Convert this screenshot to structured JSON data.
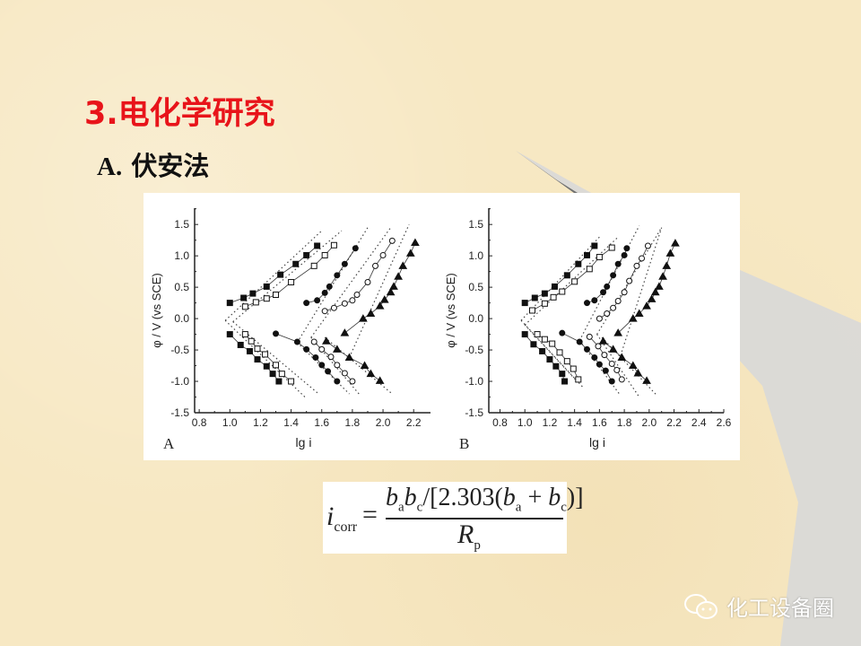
{
  "slide": {
    "title": "3.电化学研究",
    "subtitle_letter": "A.",
    "subtitle_text": "伏安法"
  },
  "formula": {
    "lhs": "i",
    "lhs_sub": "corr",
    "equals": "=",
    "numerator": [
      "b",
      "a",
      "b",
      "c",
      "/[2.303(",
      "b",
      "a",
      " + ",
      "b",
      "c",
      ")]"
    ],
    "denominator": "R",
    "denominator_sub": "p"
  },
  "watermark": {
    "icon": "wechat-icon",
    "text": "化工设备圈"
  },
  "colors": {
    "title": "#e8141a",
    "background": "#f7e8c3",
    "swoosh": "#d6d6d6"
  },
  "chart_data": [
    {
      "type": "scatter",
      "panel_label": "A",
      "xlabel": "lg i",
      "ylabel": "φ / V (vs SCE)",
      "xlim": [
        0.77,
        2.31
      ],
      "ylim": [
        -1.5,
        1.76
      ],
      "xticks": [
        "0.8",
        "1.0",
        "1.2",
        "1.4",
        "1.6",
        "1.8",
        "2.0",
        "2.2"
      ],
      "yticks": [
        "-1.5",
        "-1.0",
        "-0.5",
        "0.0",
        "0.5",
        "1.0",
        "1.5"
      ],
      "grid": false,
      "series": [
        {
          "marker": "filled-square",
          "branch": "anodic",
          "points": [
            [
              1.0,
              0.25
            ],
            [
              1.09,
              0.33
            ],
            [
              1.15,
              0.4
            ],
            [
              1.24,
              0.51
            ],
            [
              1.33,
              0.7
            ],
            [
              1.43,
              0.87
            ],
            [
              1.5,
              1.01
            ],
            [
              1.57,
              1.16
            ]
          ]
        },
        {
          "marker": "open-square",
          "branch": "anodic",
          "points": [
            [
              1.1,
              0.19
            ],
            [
              1.17,
              0.26
            ],
            [
              1.24,
              0.32
            ],
            [
              1.3,
              0.38
            ],
            [
              1.4,
              0.58
            ],
            [
              1.55,
              0.84
            ],
            [
              1.62,
              1.01
            ],
            [
              1.68,
              1.17
            ]
          ]
        },
        {
          "marker": "filled-circle",
          "branch": "anodic",
          "points": [
            [
              1.5,
              0.25
            ],
            [
              1.57,
              0.29
            ],
            [
              1.62,
              0.41
            ],
            [
              1.65,
              0.51
            ],
            [
              1.7,
              0.69
            ],
            [
              1.75,
              0.87
            ],
            [
              1.82,
              1.12
            ]
          ]
        },
        {
          "marker": "open-circle",
          "branch": "anodic",
          "points": [
            [
              1.62,
              0.12
            ],
            [
              1.68,
              0.17
            ],
            [
              1.75,
              0.24
            ],
            [
              1.8,
              0.29
            ],
            [
              1.83,
              0.38
            ],
            [
              1.9,
              0.58
            ],
            [
              1.95,
              0.84
            ],
            [
              2.0,
              1.01
            ],
            [
              2.06,
              1.24
            ]
          ]
        },
        {
          "marker": "filled-triangle",
          "branch": "anodic",
          "points": [
            [
              1.75,
              -0.23
            ],
            [
              1.87,
              0.0
            ],
            [
              1.92,
              0.08
            ],
            [
              1.98,
              0.2
            ],
            [
              2.01,
              0.3
            ],
            [
              2.05,
              0.42
            ],
            [
              2.07,
              0.51
            ],
            [
              2.1,
              0.67
            ],
            [
              2.13,
              0.84
            ],
            [
              2.18,
              1.04
            ],
            [
              2.21,
              1.21
            ]
          ]
        },
        {
          "marker": "filled-square",
          "branch": "cathodic",
          "points": [
            [
              1.0,
              -0.25
            ],
            [
              1.07,
              -0.42
            ],
            [
              1.13,
              -0.52
            ],
            [
              1.18,
              -0.65
            ],
            [
              1.24,
              -0.76
            ],
            [
              1.28,
              -0.88
            ],
            [
              1.32,
              -1.0
            ]
          ]
        },
        {
          "marker": "open-square",
          "branch": "cathodic",
          "points": [
            [
              1.1,
              -0.25
            ],
            [
              1.14,
              -0.36
            ],
            [
              1.18,
              -0.48
            ],
            [
              1.23,
              -0.57
            ],
            [
              1.3,
              -0.74
            ],
            [
              1.34,
              -0.88
            ],
            [
              1.4,
              -1.0
            ]
          ]
        },
        {
          "marker": "filled-circle",
          "branch": "cathodic",
          "points": [
            [
              1.3,
              -0.24
            ],
            [
              1.44,
              -0.37
            ],
            [
              1.5,
              -0.49
            ],
            [
              1.56,
              -0.62
            ],
            [
              1.6,
              -0.74
            ],
            [
              1.64,
              -0.84
            ],
            [
              1.7,
              -1.0
            ]
          ]
        },
        {
          "marker": "open-circle",
          "branch": "cathodic",
          "points": [
            [
              1.55,
              -0.37
            ],
            [
              1.6,
              -0.49
            ],
            [
              1.66,
              -0.61
            ],
            [
              1.7,
              -0.74
            ],
            [
              1.75,
              -0.87
            ],
            [
              1.8,
              -1.0
            ]
          ]
        },
        {
          "marker": "filled-triangle",
          "branch": "cathodic",
          "points": [
            [
              1.63,
              -0.36
            ],
            [
              1.7,
              -0.49
            ],
            [
              1.78,
              -0.62
            ],
            [
              1.88,
              -0.75
            ],
            [
              1.92,
              -0.88
            ],
            [
              1.98,
              -0.99
            ]
          ]
        }
      ],
      "tafel_lines": [
        [
          [
            0.97,
            -0.03
          ],
          [
            1.6,
            1.4
          ]
        ],
        [
          [
            0.97,
            -0.03
          ],
          [
            1.49,
            -1.25
          ]
        ],
        [
          [
            1.02,
            -0.05
          ],
          [
            1.73,
            1.4
          ]
        ],
        [
          [
            1.02,
            -0.05
          ],
          [
            1.58,
            -1.2
          ]
        ],
        [
          [
            1.44,
            -0.38
          ],
          [
            1.9,
            1.45
          ]
        ],
        [
          [
            1.44,
            -0.38
          ],
          [
            1.78,
            -1.2
          ]
        ],
        [
          [
            1.53,
            -0.3
          ],
          [
            2.05,
            1.45
          ]
        ],
        [
          [
            1.53,
            -0.3
          ],
          [
            1.85,
            -1.22
          ]
        ],
        [
          [
            1.78,
            -0.62
          ],
          [
            2.17,
            1.5
          ]
        ],
        [
          [
            1.62,
            -0.3
          ],
          [
            2.06,
            -1.2
          ]
        ]
      ]
    },
    {
      "type": "scatter",
      "panel_label": "B",
      "xlabel": "lg i",
      "ylabel": "φ / V (vs SCE)",
      "xlim": [
        0.71,
        2.6
      ],
      "ylim": [
        -1.5,
        1.76
      ],
      "xticks": [
        "0.8",
        "1.0",
        "1.2",
        "1.4",
        "1.6",
        "1.8",
        "2.0",
        "2.2",
        "2.4",
        "2.6"
      ],
      "yticks": [
        "-1.5",
        "-1.0",
        "-0.5",
        "0.0",
        "0.5",
        "1.0",
        "1.5"
      ],
      "grid": false,
      "series": [
        {
          "marker": "filled-square",
          "branch": "anodic",
          "points": [
            [
              1.0,
              0.25
            ],
            [
              1.08,
              0.33
            ],
            [
              1.16,
              0.4
            ],
            [
              1.24,
              0.51
            ],
            [
              1.34,
              0.69
            ],
            [
              1.43,
              0.87
            ],
            [
              1.5,
              1.01
            ],
            [
              1.56,
              1.16
            ]
          ]
        },
        {
          "marker": "open-square",
          "branch": "anodic",
          "points": [
            [
              1.06,
              0.13
            ],
            [
              1.16,
              0.24
            ],
            [
              1.23,
              0.34
            ],
            [
              1.3,
              0.43
            ],
            [
              1.4,
              0.59
            ],
            [
              1.52,
              0.79
            ],
            [
              1.6,
              0.98
            ],
            [
              1.7,
              1.13
            ]
          ]
        },
        {
          "marker": "filled-circle",
          "branch": "anodic",
          "points": [
            [
              1.5,
              0.25
            ],
            [
              1.56,
              0.29
            ],
            [
              1.63,
              0.42
            ],
            [
              1.66,
              0.51
            ],
            [
              1.71,
              0.69
            ],
            [
              1.75,
              0.87
            ],
            [
              1.8,
              1.01
            ],
            [
              1.82,
              1.12
            ]
          ]
        },
        {
          "marker": "open-circle",
          "branch": "anodic",
          "points": [
            [
              1.6,
              0.0
            ],
            [
              1.66,
              0.08
            ],
            [
              1.71,
              0.17
            ],
            [
              1.75,
              0.28
            ],
            [
              1.8,
              0.42
            ],
            [
              1.84,
              0.6
            ],
            [
              1.9,
              0.84
            ],
            [
              1.94,
              0.96
            ],
            [
              1.99,
              1.16
            ]
          ]
        },
        {
          "marker": "filled-triangle",
          "branch": "anodic",
          "points": [
            [
              1.75,
              -0.23
            ],
            [
              1.87,
              0.0
            ],
            [
              1.92,
              0.08
            ],
            [
              1.98,
              0.2
            ],
            [
              2.02,
              0.31
            ],
            [
              2.05,
              0.42
            ],
            [
              2.08,
              0.51
            ],
            [
              2.11,
              0.67
            ],
            [
              2.14,
              0.84
            ],
            [
              2.17,
              1.04
            ],
            [
              2.21,
              1.2
            ]
          ]
        },
        {
          "marker": "filled-square",
          "branch": "cathodic",
          "points": [
            [
              1.0,
              -0.25
            ],
            [
              1.07,
              -0.41
            ],
            [
              1.14,
              -0.52
            ],
            [
              1.2,
              -0.65
            ],
            [
              1.25,
              -0.76
            ],
            [
              1.3,
              -0.88
            ],
            [
              1.32,
              -1.0
            ]
          ]
        },
        {
          "marker": "open-square",
          "branch": "cathodic",
          "points": [
            [
              1.1,
              -0.25
            ],
            [
              1.16,
              -0.33
            ],
            [
              1.22,
              -0.4
            ],
            [
              1.28,
              -0.54
            ],
            [
              1.34,
              -0.68
            ],
            [
              1.39,
              -0.8
            ],
            [
              1.43,
              -0.97
            ]
          ]
        },
        {
          "marker": "filled-circle",
          "branch": "cathodic",
          "points": [
            [
              1.3,
              -0.23
            ],
            [
              1.44,
              -0.37
            ],
            [
              1.5,
              -0.49
            ],
            [
              1.56,
              -0.62
            ],
            [
              1.6,
              -0.73
            ],
            [
              1.65,
              -0.83
            ],
            [
              1.7,
              -1.0
            ]
          ]
        },
        {
          "marker": "open-circle",
          "branch": "cathodic",
          "points": [
            [
              1.52,
              -0.29
            ],
            [
              1.59,
              -0.44
            ],
            [
              1.64,
              -0.58
            ],
            [
              1.7,
              -0.72
            ],
            [
              1.74,
              -0.82
            ],
            [
              1.78,
              -0.97
            ]
          ]
        },
        {
          "marker": "filled-triangle",
          "branch": "cathodic",
          "points": [
            [
              1.63,
              -0.36
            ],
            [
              1.71,
              -0.49
            ],
            [
              1.78,
              -0.62
            ],
            [
              1.87,
              -0.75
            ],
            [
              1.91,
              -0.87
            ],
            [
              1.98,
              -0.99
            ]
          ]
        }
      ],
      "tafel_lines": [
        [
          [
            0.97,
            -0.03
          ],
          [
            1.6,
            1.3
          ]
        ],
        [
          [
            0.97,
            -0.03
          ],
          [
            1.47,
            -1.1
          ]
        ],
        [
          [
            1.0,
            -0.1
          ],
          [
            1.75,
            1.3
          ]
        ],
        [
          [
            1.0,
            -0.1
          ],
          [
            1.42,
            -1.0
          ]
        ],
        [
          [
            1.44,
            -0.35
          ],
          [
            1.92,
            1.48
          ]
        ],
        [
          [
            1.44,
            -0.35
          ],
          [
            1.76,
            -1.2
          ]
        ],
        [
          [
            1.58,
            -0.25
          ],
          [
            2.1,
            1.45
          ]
        ],
        [
          [
            1.58,
            -0.25
          ],
          [
            1.92,
            -1.25
          ]
        ],
        [
          [
            1.76,
            -0.65
          ],
          [
            2.1,
            1.45
          ]
        ],
        [
          [
            1.62,
            -0.3
          ],
          [
            2.06,
            -1.22
          ]
        ]
      ]
    }
  ]
}
